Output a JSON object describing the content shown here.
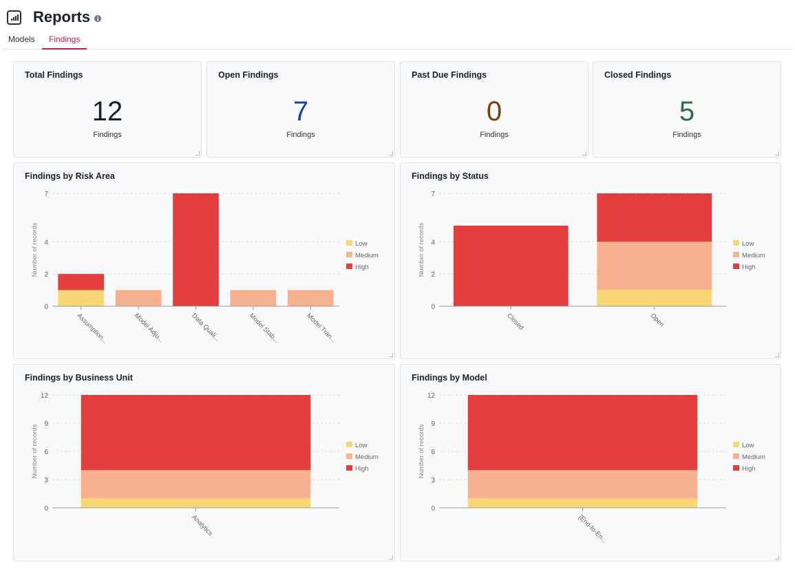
{
  "header": {
    "title": "Reports",
    "info_icon": "info-icon",
    "logo_icon": "bar-chart-icon"
  },
  "tabs": [
    {
      "label": "Models",
      "active": false
    },
    {
      "label": "Findings",
      "active": true
    }
  ],
  "kpis": [
    {
      "title": "Total Findings",
      "value": "12",
      "label": "Findings",
      "color": "#1b1f2a"
    },
    {
      "title": "Open Findings",
      "value": "7",
      "label": "Findings",
      "color": "#1e40af"
    },
    {
      "title": "Past Due Findings",
      "value": "0",
      "label": "Findings",
      "color": "#7a3e0c"
    },
    {
      "title": "Closed Findings",
      "value": "5",
      "label": "Findings",
      "color": "#2f6b45"
    }
  ],
  "chart_data": [
    {
      "type": "bar",
      "stacked": true,
      "title": "Findings by Risk Area",
      "xlabel": "",
      "ylabel": "Number of records",
      "ylim": [
        0,
        7
      ],
      "yticks": [
        0,
        2,
        4,
        7
      ],
      "grid": true,
      "legend": "right",
      "categories": [
        "Assumption...",
        "Model Adju...",
        "Data Quali...",
        "Model Stab...",
        "Model Tran..."
      ],
      "series": [
        {
          "name": "Low",
          "color": "#f8d775",
          "values": [
            1,
            0,
            0,
            0,
            0
          ]
        },
        {
          "name": "Medium",
          "color": "#f8b18f",
          "values": [
            0,
            1,
            0,
            1,
            1
          ]
        },
        {
          "name": "High",
          "color": "#e43e3f",
          "values": [
            1,
            0,
            7,
            0,
            0
          ]
        }
      ]
    },
    {
      "type": "bar",
      "stacked": true,
      "title": "Findings by Status",
      "xlabel": "",
      "ylabel": "Number of records",
      "ylim": [
        0,
        7
      ],
      "yticks": [
        0,
        2,
        4,
        7
      ],
      "grid": true,
      "legend": "right",
      "categories": [
        "Closed",
        "Open"
      ],
      "series": [
        {
          "name": "Low",
          "color": "#f8d775",
          "values": [
            0,
            1
          ]
        },
        {
          "name": "Medium",
          "color": "#f8b18f",
          "values": [
            0,
            3
          ]
        },
        {
          "name": "High",
          "color": "#e43e3f",
          "values": [
            5,
            3
          ]
        }
      ]
    },
    {
      "type": "bar",
      "stacked": true,
      "title": "Findings by Business Unit",
      "xlabel": "",
      "ylabel": "Number of records",
      "ylim": [
        0,
        12
      ],
      "yticks": [
        0,
        3,
        6,
        9,
        12
      ],
      "grid": true,
      "legend": "right",
      "categories": [
        "Analytics"
      ],
      "series": [
        {
          "name": "Low",
          "color": "#f8d775",
          "values": [
            1
          ]
        },
        {
          "name": "Medium",
          "color": "#f8b18f",
          "values": [
            3
          ]
        },
        {
          "name": "High",
          "color": "#e43e3f",
          "values": [
            8
          ]
        }
      ]
    },
    {
      "type": "bar",
      "stacked": true,
      "title": "Findings by Model",
      "xlabel": "",
      "ylabel": "Number of records",
      "ylim": [
        0,
        12
      ],
      "yticks": [
        0,
        3,
        6,
        9,
        12
      ],
      "grid": true,
      "legend": "right",
      "categories": [
        "[End-to-En..."
      ],
      "series": [
        {
          "name": "Low",
          "color": "#f8d775",
          "values": [
            1
          ]
        },
        {
          "name": "Medium",
          "color": "#f8b18f",
          "values": [
            3
          ]
        },
        {
          "name": "High",
          "color": "#e43e3f",
          "values": [
            8
          ]
        }
      ]
    }
  ]
}
